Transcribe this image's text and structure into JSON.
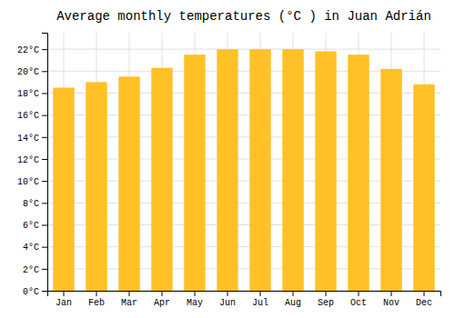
{
  "chart_data": {
    "type": "bar",
    "title": "Average monthly temperatures (°C ) in Juan Adrián",
    "categories": [
      "Jan",
      "Feb",
      "Mar",
      "Apr",
      "May",
      "Jun",
      "Jul",
      "Aug",
      "Sep",
      "Oct",
      "Nov",
      "Dec"
    ],
    "values": [
      18.5,
      19.0,
      19.5,
      20.3,
      21.5,
      22.0,
      22.0,
      22.0,
      21.8,
      21.5,
      20.2,
      18.8
    ],
    "color": "#FFC125",
    "ylim": [
      0,
      23.5
    ],
    "yticks": [
      {
        "value": 0,
        "label": "0°C"
      },
      {
        "value": 2,
        "label": "2°C"
      },
      {
        "value": 4,
        "label": "4°C"
      },
      {
        "value": 6,
        "label": "6°C"
      },
      {
        "value": 8,
        "label": "8°C"
      },
      {
        "value": 10,
        "label": "10°C"
      },
      {
        "value": 12,
        "label": "12°C"
      },
      {
        "value": 14,
        "label": "14°C"
      },
      {
        "value": 16,
        "label": "16°C"
      },
      {
        "value": 18,
        "label": "18°C"
      },
      {
        "value": 20,
        "label": "20°C"
      },
      {
        "value": 22,
        "label": "22°C"
      }
    ],
    "grid": true
  }
}
